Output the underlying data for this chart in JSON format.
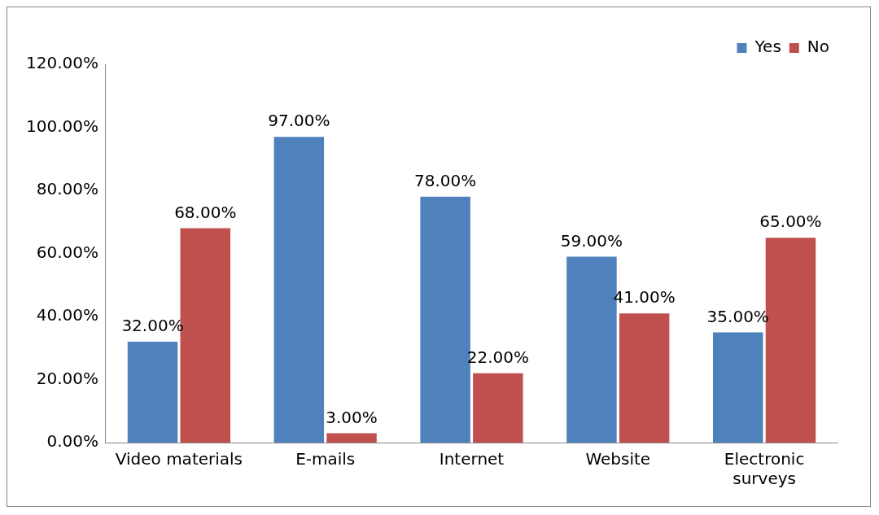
{
  "chart_data": {
    "type": "bar",
    "categories": [
      "Video materials",
      "E-mails",
      "Internet",
      "Website",
      "Electronic surveys"
    ],
    "series": [
      {
        "name": "Yes",
        "color": "#4f81bd",
        "values": [
          32,
          97,
          78,
          59,
          35
        ],
        "value_labels": [
          "32.00%",
          "97.00%",
          "78.00%",
          "59.00%",
          "35.00%"
        ]
      },
      {
        "name": "No",
        "color": "#c0504d",
        "values": [
          68,
          3,
          22,
          41,
          65
        ],
        "value_labels": [
          "68.00%",
          "3.00%",
          "22.00%",
          "41.00%",
          "65.00%"
        ]
      }
    ],
    "ylim": [
      0,
      120
    ],
    "yticks": [
      {
        "value": 0,
        "label": "0.00%"
      },
      {
        "value": 20,
        "label": "20.00%"
      },
      {
        "value": 40,
        "label": "40.00%"
      },
      {
        "value": 60,
        "label": "60.00%"
      },
      {
        "value": 80,
        "label": "80.00%"
      },
      {
        "value": 100,
        "label": "100.00%"
      },
      {
        "value": 120,
        "label": "120.00%"
      }
    ],
    "grid": false,
    "legend": "top right"
  }
}
